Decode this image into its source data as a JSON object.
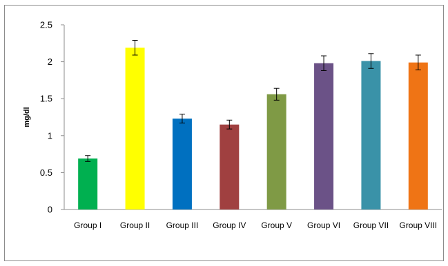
{
  "chart_data": {
    "type": "bar",
    "title": "",
    "xlabel": "",
    "ylabel": "mg/dl",
    "ylim": [
      0,
      2.5
    ],
    "yticks": [
      "0",
      "0.5",
      "1",
      "1.5",
      "2",
      "2.5"
    ],
    "ytick_values": [
      0,
      0.5,
      1,
      1.5,
      2,
      2.5
    ],
    "categories": [
      "Group I",
      "Group II",
      "Group III",
      "Group IV",
      "Group V",
      "Group VI",
      "Group VII",
      "Group VIII"
    ],
    "values": [
      0.69,
      2.19,
      1.23,
      1.15,
      1.56,
      1.98,
      2.01,
      1.99
    ],
    "errors": [
      0.04,
      0.1,
      0.06,
      0.06,
      0.08,
      0.1,
      0.1,
      0.1
    ],
    "colors": [
      "#00b050",
      "#ffff00",
      "#0070c0",
      "#a04040",
      "#7f9a45",
      "#6b5287",
      "#3a92a8",
      "#ef7415"
    ],
    "grid": false,
    "legend": "none",
    "error_bars": true
  }
}
